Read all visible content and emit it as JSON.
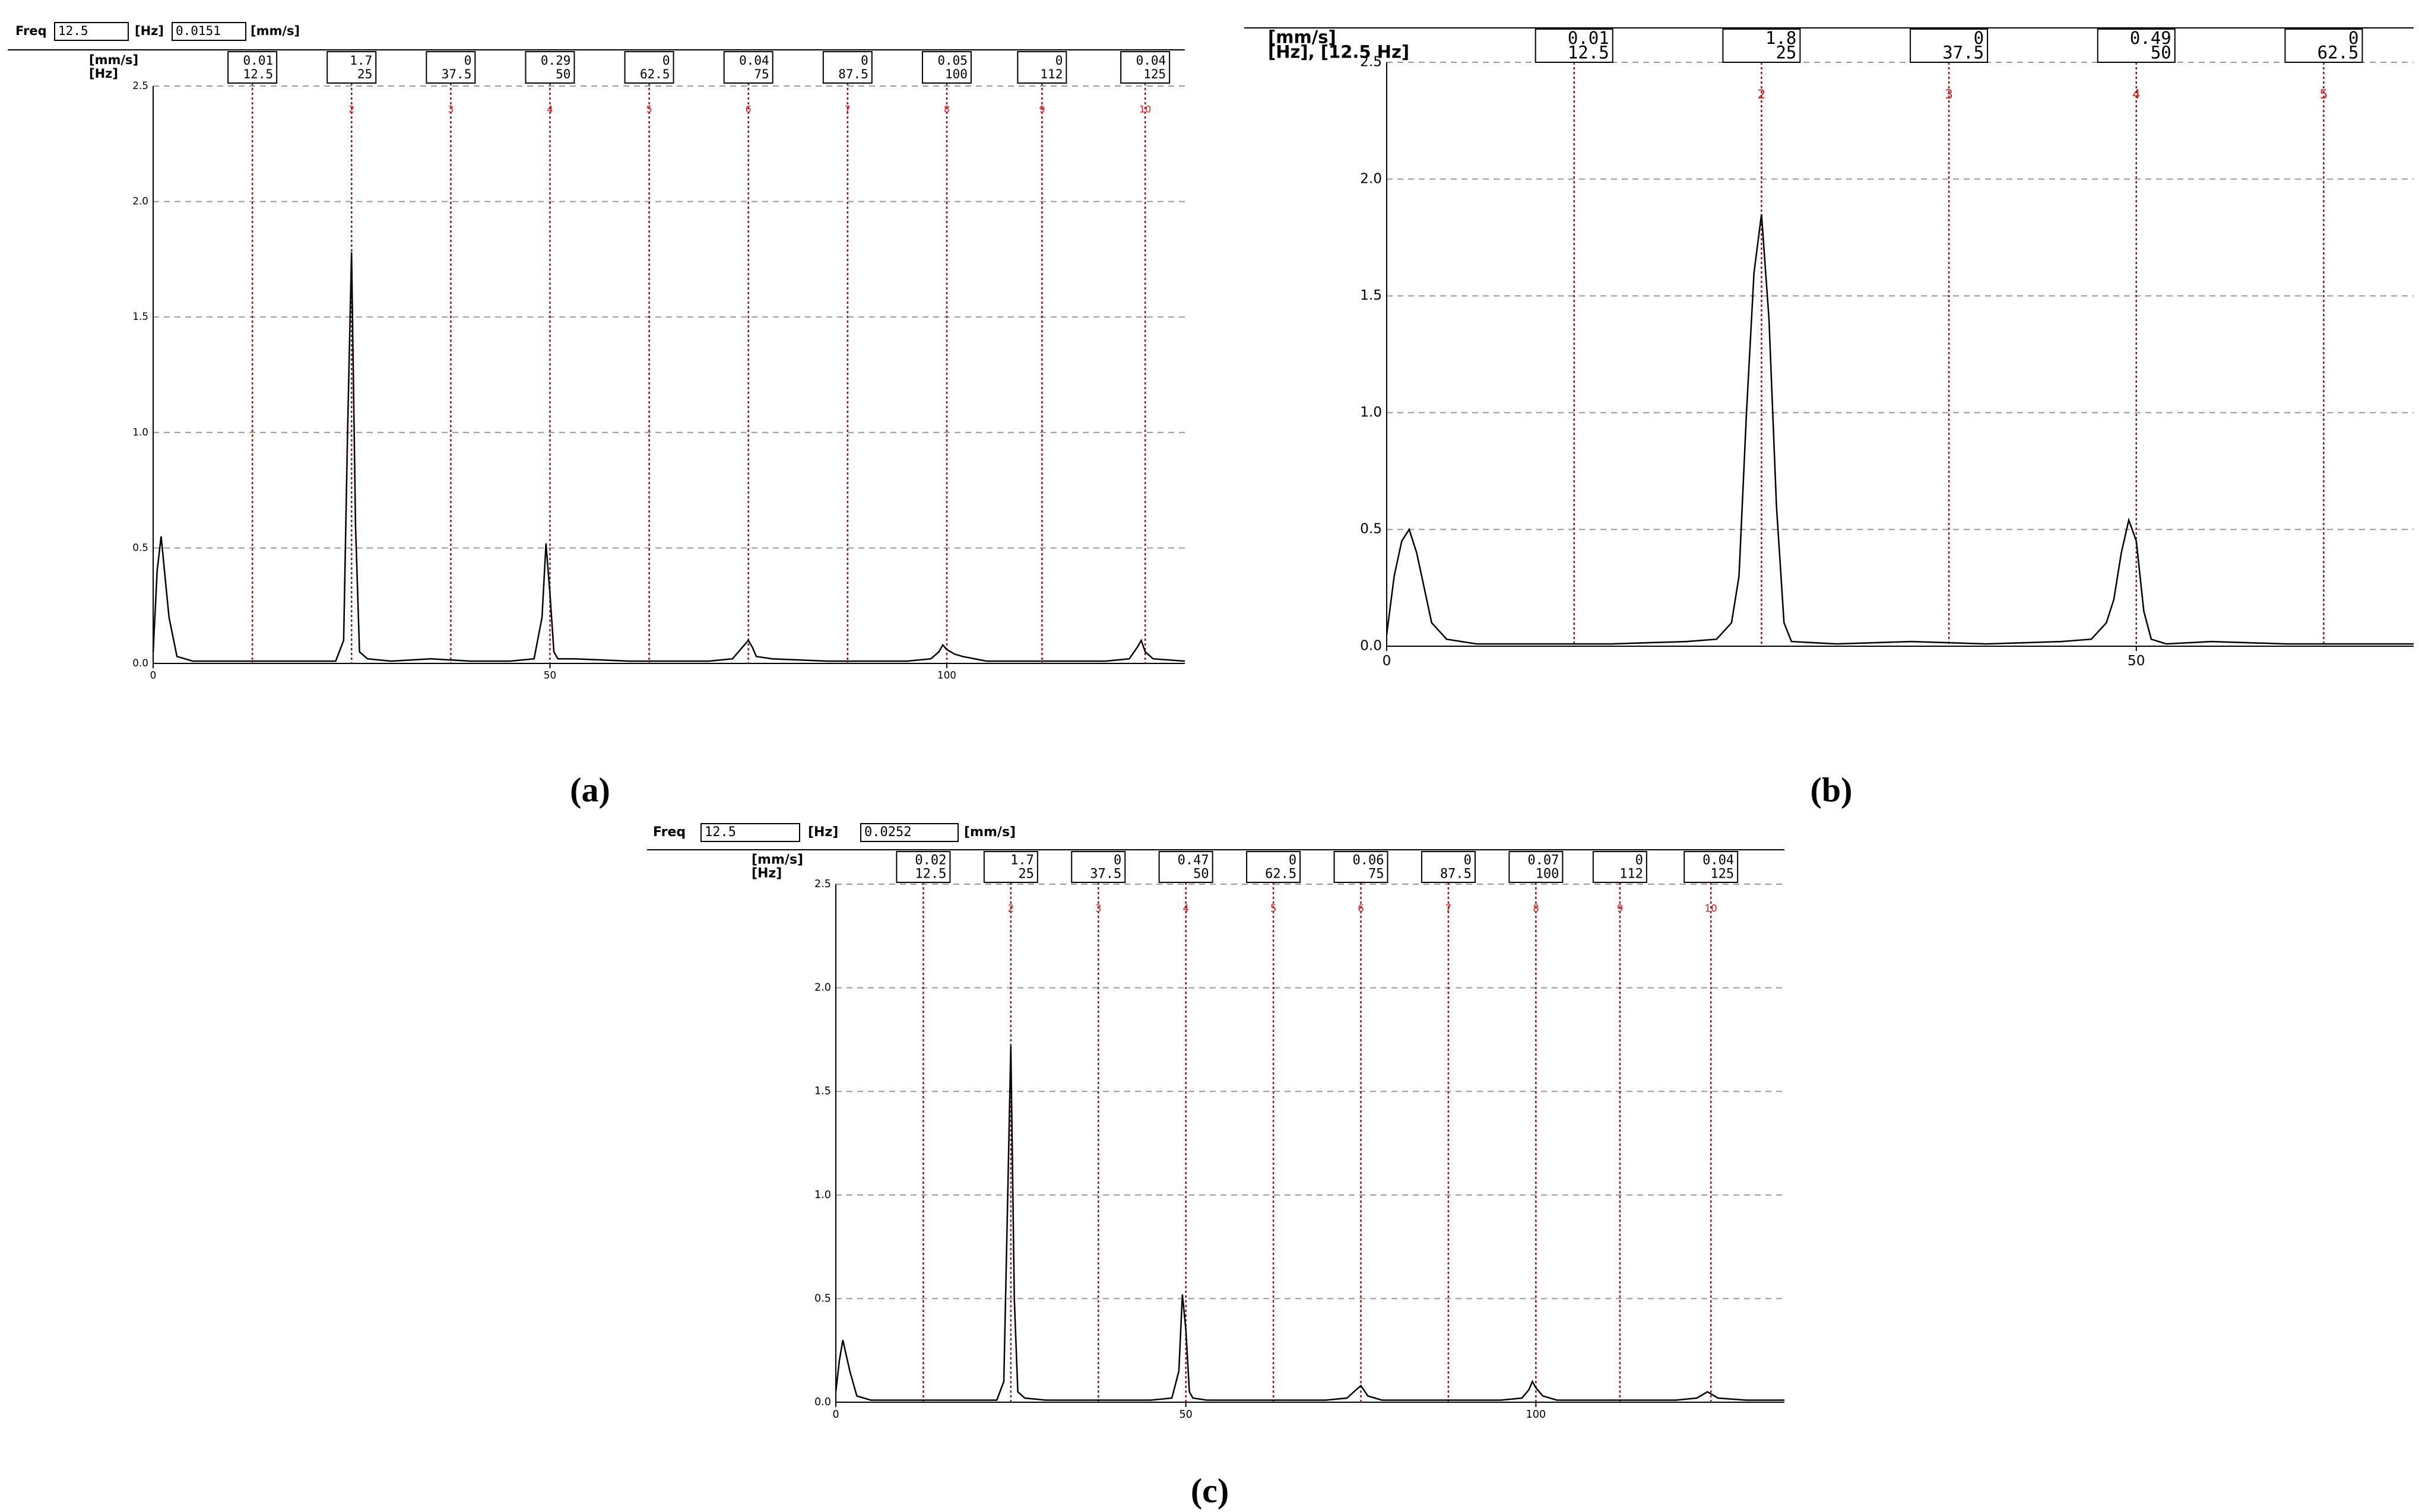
{
  "chart_data": [
    {
      "type": "line",
      "caption": "(a)",
      "header": {
        "label": "Freq",
        "freq": 12.5,
        "freq_unit": "[Hz]",
        "amplitude": 0.0151,
        "amplitude_unit": "[mm/s]"
      },
      "y_unit": "[mm/s]",
      "x_unit": "[Hz]",
      "color": "#000000",
      "grid": true,
      "xlim": [
        0,
        130
      ],
      "ylim": [
        0,
        2.5
      ],
      "xticks": [
        0,
        50,
        100
      ],
      "yticks": [
        {
          "value": 0,
          "label": "0.0"
        },
        0.5,
        {
          "value": 1,
          "label": "1.0"
        },
        1.5,
        {
          "value": 2,
          "label": "2.0"
        },
        2.5
      ],
      "x": [
        0,
        0.5,
        1,
        2,
        3,
        5,
        8,
        12,
        15,
        20,
        23,
        24,
        24.5,
        25,
        25.5,
        26,
        27,
        30,
        35,
        40,
        45,
        48,
        49,
        49.5,
        50,
        50.5,
        51,
        53,
        60,
        65,
        70,
        73,
        74,
        75,
        75.5,
        76,
        78,
        85,
        90,
        95,
        98,
        99,
        99.5,
        100,
        101,
        102,
        105,
        110,
        115,
        120,
        123,
        124,
        124.5,
        125,
        126,
        130
      ],
      "values": [
        0.05,
        0.4,
        0.55,
        0.2,
        0.03,
        0.01,
        0.01,
        0.01,
        0.01,
        0.01,
        0.01,
        0.1,
        1.0,
        1.78,
        0.6,
        0.05,
        0.02,
        0.01,
        0.02,
        0.01,
        0.01,
        0.02,
        0.2,
        0.52,
        0.3,
        0.05,
        0.02,
        0.02,
        0.01,
        0.01,
        0.01,
        0.02,
        0.06,
        0.1,
        0.07,
        0.03,
        0.02,
        0.01,
        0.01,
        0.01,
        0.02,
        0.05,
        0.08,
        0.06,
        0.04,
        0.03,
        0.01,
        0.01,
        0.01,
        0.01,
        0.02,
        0.07,
        0.1,
        0.05,
        0.02,
        0.01
      ],
      "harmonics": {
        "color": "#8b1a1a",
        "number_color": "#d02020",
        "x": [
          12.5,
          25,
          37.5,
          50,
          62.5,
          75,
          87.5,
          100,
          112,
          125
        ],
        "values": [
          0.01,
          1.7,
          0,
          0.29,
          0,
          0.04,
          0,
          0.05,
          0,
          0.04
        ],
        "numbers": [
          null,
          2,
          3,
          4,
          5,
          6,
          7,
          8,
          9,
          10
        ]
      }
    },
    {
      "type": "line",
      "caption": "(b)",
      "y_unit": "[mm/s]",
      "x_unit": "[Hz], [12.5 Hz]",
      "color": "#000000",
      "grid": true,
      "xlim": [
        0,
        68.5
      ],
      "ylim": [
        0,
        2.5
      ],
      "xticks": [
        0,
        50
      ],
      "yticks": [
        {
          "value": 0,
          "label": "0.0"
        },
        0.5,
        {
          "value": 1,
          "label": "1.0"
        },
        1.5,
        {
          "value": 2,
          "label": "2.0"
        },
        2.5
      ],
      "x": [
        0,
        0.5,
        1,
        1.5,
        2,
        3,
        4,
        6,
        10,
        15,
        20,
        22,
        23,
        23.5,
        24,
        24.5,
        25,
        25.5,
        26,
        26.5,
        27,
        30,
        35,
        40,
        45,
        47,
        48,
        48.5,
        49,
        49.5,
        50,
        50.5,
        51,
        52,
        55,
        60,
        65,
        68.5
      ],
      "values": [
        0.05,
        0.3,
        0.45,
        0.5,
        0.4,
        0.1,
        0.03,
        0.01,
        0.01,
        0.01,
        0.02,
        0.03,
        0.1,
        0.3,
        1.0,
        1.6,
        1.85,
        1.4,
        0.6,
        0.1,
        0.02,
        0.01,
        0.02,
        0.01,
        0.02,
        0.03,
        0.1,
        0.2,
        0.4,
        0.54,
        0.45,
        0.15,
        0.03,
        0.01,
        0.02,
        0.01,
        0.01,
        0.01
      ],
      "harmonics": {
        "color": "#8b1a1a",
        "number_color": "#d02020",
        "x": [
          12.5,
          25,
          37.5,
          50,
          62.5
        ],
        "values": [
          0.01,
          1.8,
          0,
          0.49,
          0
        ],
        "numbers": [
          null,
          2,
          3,
          4,
          5
        ]
      }
    },
    {
      "type": "line",
      "caption": "(c)",
      "header": {
        "label": "Freq",
        "freq": 12.5,
        "freq_unit": "[Hz]",
        "amplitude": 0.0252,
        "amplitude_unit": "[mm/s]"
      },
      "y_unit": "[mm/s]",
      "x_unit": "[Hz]",
      "color": "#000000",
      "grid": true,
      "xlim": [
        0,
        135.5
      ],
      "ylim": [
        0,
        2.5
      ],
      "xticks": [
        0,
        50,
        100
      ],
      "yticks": [
        {
          "value": 0,
          "label": "0.0"
        },
        0.5,
        {
          "value": 1,
          "label": "1.0"
        },
        1.5,
        {
          "value": 2,
          "label": "2.0"
        },
        2.5
      ],
      "x": [
        0,
        0.5,
        1,
        2,
        3,
        5,
        10,
        15,
        20,
        23,
        24,
        24.5,
        25,
        25.5,
        26,
        27,
        30,
        40,
        45,
        48,
        49,
        49.5,
        50,
        50.5,
        51,
        53,
        60,
        70,
        73,
        74,
        75,
        76,
        78,
        85,
        95,
        98,
        99,
        99.5,
        100,
        101,
        103,
        110,
        120,
        123,
        124,
        124.5,
        125,
        126,
        130,
        135.5
      ],
      "values": [
        0.05,
        0.2,
        0.3,
        0.15,
        0.03,
        0.01,
        0.01,
        0.01,
        0.01,
        0.01,
        0.1,
        0.9,
        1.72,
        0.5,
        0.05,
        0.02,
        0.01,
        0.01,
        0.01,
        0.02,
        0.15,
        0.52,
        0.35,
        0.05,
        0.02,
        0.01,
        0.01,
        0.01,
        0.02,
        0.05,
        0.08,
        0.03,
        0.01,
        0.01,
        0.01,
        0.02,
        0.06,
        0.1,
        0.07,
        0.03,
        0.01,
        0.01,
        0.01,
        0.02,
        0.04,
        0.05,
        0.04,
        0.02,
        0.01,
        0.01
      ],
      "harmonics": {
        "color": "#8b1a1a",
        "number_color": "#d02020",
        "x": [
          12.5,
          25,
          37.5,
          50,
          62.5,
          75,
          87.5,
          100,
          112,
          125
        ],
        "values": [
          0.02,
          1.7,
          0,
          0.47,
          0,
          0.06,
          0,
          0.07,
          0,
          0.04
        ],
        "numbers": [
          null,
          2,
          3,
          4,
          5,
          6,
          7,
          8,
          9,
          10
        ]
      }
    }
  ]
}
